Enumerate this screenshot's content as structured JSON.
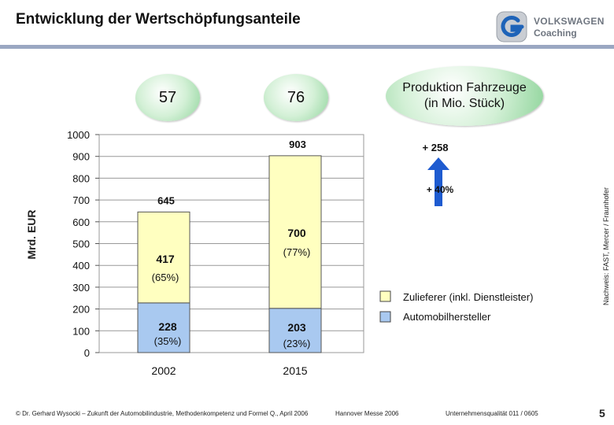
{
  "header": {
    "title": "Entwicklung der Wertschöpfungsanteile"
  },
  "logo": {
    "line1": "VOLKSWAGEN",
    "line2": "Coaching"
  },
  "bubbles": {
    "vehicles_2002": "57",
    "vehicles_2015": "76",
    "label_line1": "Produktion Fahrzeuge",
    "label_line2": "(in Mio. Stück)"
  },
  "colors": {
    "supplier": "#ffffc0",
    "oem": "#a9c9f0",
    "arrow": "#1e5bd0",
    "rule": "#9aa7c2"
  },
  "chart_data": {
    "type": "bar",
    "stacked": true,
    "categories": [
      "2002",
      "2015"
    ],
    "series": [
      {
        "name": "Automobilhersteller",
        "values": [
          228,
          203
        ],
        "labels": [
          "228",
          "203"
        ],
        "shares": [
          "(35%)",
          "(23%)"
        ]
      },
      {
        "name": "Zulieferer (inkl. Dienstleister)",
        "values": [
          417,
          700
        ],
        "labels": [
          "417",
          "700"
        ],
        "shares": [
          "(65%)",
          "(77%)"
        ]
      }
    ],
    "totals": [
      645,
      903
    ],
    "ylabel": "Mrd. EUR",
    "ylim": [
      0,
      1000
    ],
    "yticks": [
      0,
      100,
      200,
      300,
      400,
      500,
      600,
      700,
      800,
      900,
      1000
    ],
    "grid": true,
    "legend_position": "right",
    "annotations": {
      "increase_abs": "+ 258",
      "increase_pct": "+ 40%"
    }
  },
  "source_note": "Nachweis:      FAST, Mercer / Fraunhofer",
  "footer": {
    "left": "© Dr. Gerhard Wysocki – Zukunft der Automobilindustrie, Methodenkompetenz und Formel Q., April 2006",
    "middle": "Hannover Messe 2006",
    "right": "Unternehmensqualität 011 / 0605",
    "page": "5"
  }
}
